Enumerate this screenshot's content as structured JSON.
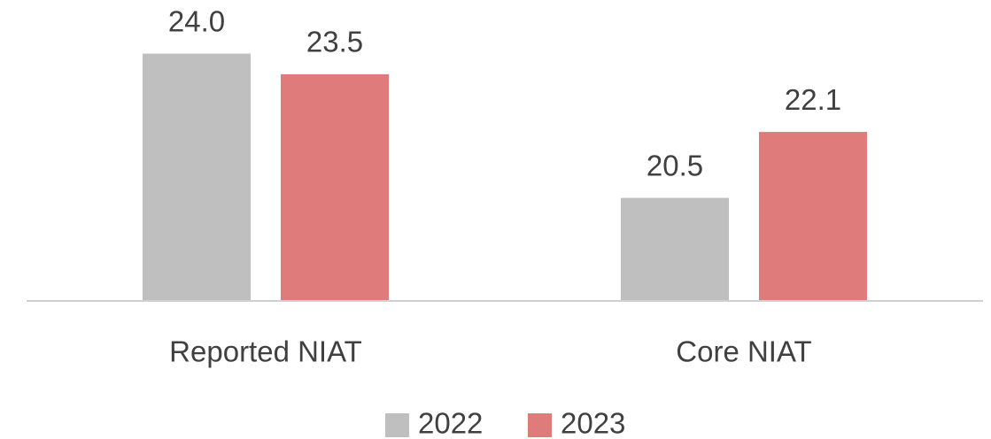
{
  "chart_data": {
    "type": "bar",
    "categories": [
      "Reported NIAT",
      "Core NIAT"
    ],
    "series": [
      {
        "name": "2022",
        "color": "#bfbfbf",
        "values": [
          24.0,
          20.5
        ],
        "value_labels": [
          "24.0",
          "20.5"
        ]
      },
      {
        "name": "2023",
        "color": "#e07b7b",
        "values": [
          23.5,
          22.1
        ],
        "value_labels": [
          "23.5",
          "22.1"
        ]
      }
    ],
    "ylim": [
      18,
      25
    ],
    "legend": "bottom"
  }
}
